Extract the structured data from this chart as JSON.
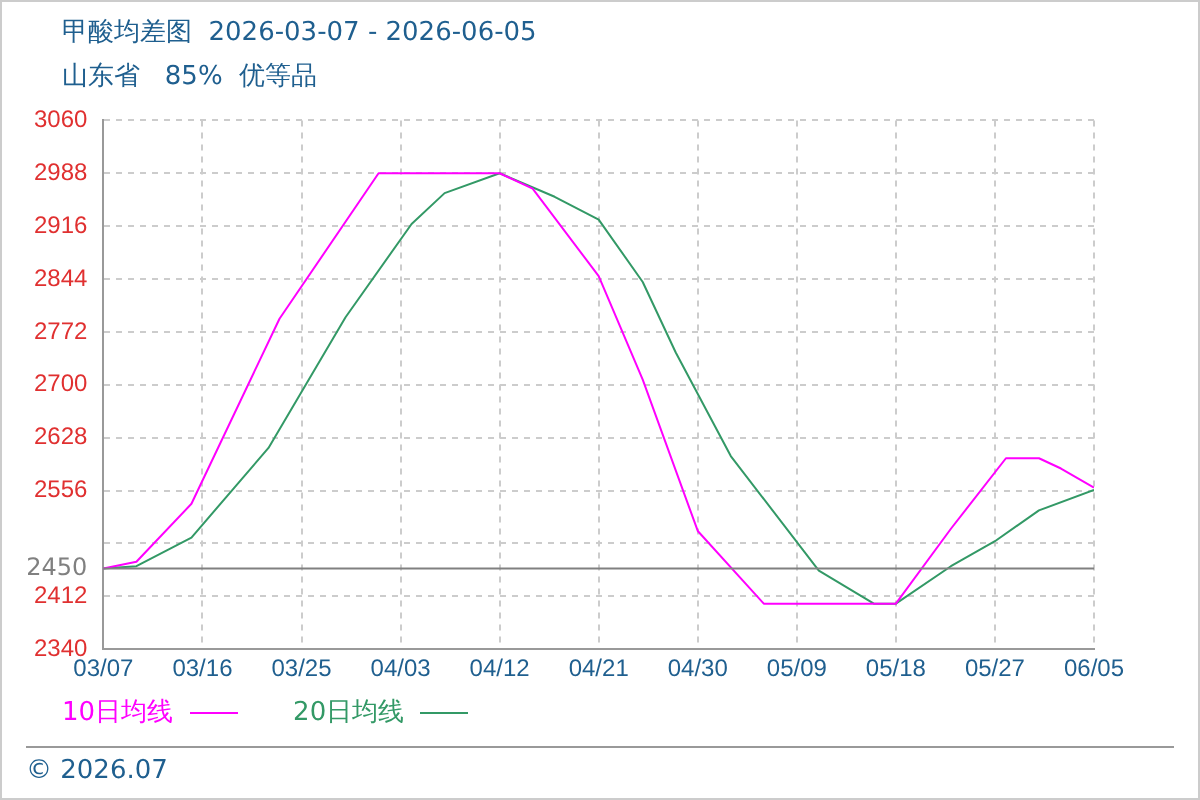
{
  "chart_data": {
    "type": "line",
    "title": "甲酸均差图  2026-03-07 - 2026-06-05",
    "subtitle": "山东省   85%  优等品",
    "xlim": [
      "2026-03-07",
      "2026-06-05"
    ],
    "xticks": [
      {
        "value": "2026-03-07",
        "label": "03/07"
      },
      {
        "value": "2026-03-16",
        "label": "03/16"
      },
      {
        "value": "2026-03-25",
        "label": "03/25"
      },
      {
        "value": "2026-04-03",
        "label": "04/03"
      },
      {
        "value": "2026-04-12",
        "label": "04/12"
      },
      {
        "value": "2026-04-21",
        "label": "04/21"
      },
      {
        "value": "2026-04-30",
        "label": "04/30"
      },
      {
        "value": "2026-05-09",
        "label": "05/09"
      },
      {
        "value": "2026-05-18",
        "label": "05/18"
      },
      {
        "value": "2026-05-27",
        "label": "05/27"
      },
      {
        "value": "2026-06-05",
        "label": "06/05"
      }
    ],
    "ylim": [
      2340,
      3060
    ],
    "yticks": [
      2340,
      2412,
      {
        "value": 2484,
        "label": null
      },
      2556,
      2628,
      2700,
      2772,
      2844,
      2916,
      2988,
      3060
    ],
    "ref_lines": [
      {
        "axis": "y",
        "value": 2450,
        "label": "2450",
        "color": "#808080"
      }
    ],
    "grid": true,
    "legend": "bottom left",
    "marker": "none",
    "line_style": "solid",
    "series": [
      {
        "name": "10日均线",
        "color": "#ff00ff",
        "x": [
          "2026-03-07",
          "2026-03-10",
          "2026-03-15",
          "2026-03-23",
          "2026-04-01",
          "2026-04-12",
          "2026-04-15",
          "2026-04-21",
          "2026-04-25",
          "2026-04-30",
          "2026-05-06",
          "2026-05-18",
          "2026-05-23",
          "2026-05-28",
          "2026-05-31",
          "2026-06-02",
          "2026-06-05"
        ],
        "values": [
          2450,
          2459,
          2538,
          2790,
          2988,
          2988,
          2967,
          2848,
          2707,
          2501,
          2402,
          2402,
          2504,
          2600,
          2600,
          2586,
          2560
        ]
      },
      {
        "name": "20日均线",
        "color": "#339966",
        "x": [
          "2026-03-07",
          "2026-03-10",
          "2026-03-15",
          "2026-03-22",
          "2026-03-29",
          "2026-04-04",
          "2026-04-07",
          "2026-04-12",
          "2026-04-17",
          "2026-04-21",
          "2026-04-25",
          "2026-04-28",
          "2026-05-03",
          "2026-05-11",
          "2026-05-16",
          "2026-05-18",
          "2026-05-23",
          "2026-05-27",
          "2026-05-31",
          "2026-06-05"
        ],
        "values": [
          2450,
          2453,
          2492,
          2614,
          2792,
          2919,
          2961,
          2988,
          2956,
          2925,
          2840,
          2744,
          2603,
          2447,
          2402,
          2402,
          2453,
          2487,
          2529,
          2557
        ]
      }
    ],
    "annotations": [
      "© 2026.07"
    ]
  }
}
